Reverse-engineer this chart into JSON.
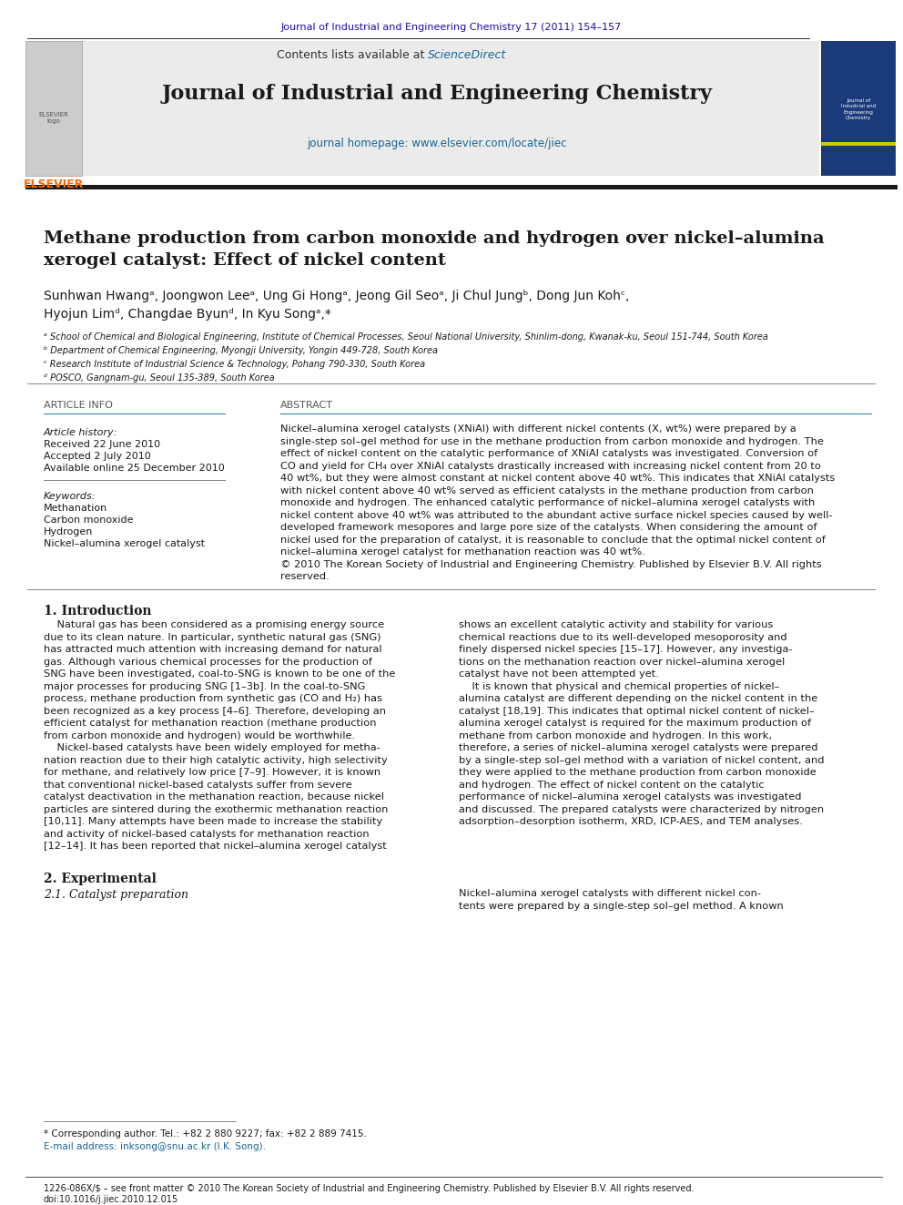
{
  "page_width": 9.92,
  "page_height": 13.23,
  "dpi": 100,
  "background_color": "#ffffff",
  "top_journal_ref": "Journal of Industrial and Engineering Chemistry 17 (2011) 154–157",
  "top_journal_ref_color": "#1a0dab",
  "header_sciencedirect_color": "#1a6496",
  "journal_name": "Journal of Industrial and Engineering Chemistry",
  "journal_homepage": "journal homepage: www.elsevier.com/locate/jiec",
  "elsevier_text": "ELSEVIER",
  "article_title": "Methane production from carbon monoxide and hydrogen over nickel–alumina\nxerogel catalyst: Effect of nickel content",
  "authors": "Sunhwan Hwangᵃ, Joongwon Leeᵃ, Ung Gi Hongᵃ, Jeong Gil Seoᵃ, Ji Chul Jungᵇ, Dong Jun Kohᶜ,\nHyojun Limᵈ, Changdae Byunᵈ, In Kyu Songᵃ,*",
  "affiliation_a": "ᵃ School of Chemical and Biological Engineering, Institute of Chemical Processes, Seoul National University, Shinlim-dong, Kwanak-ku, Seoul 151-744, South Korea",
  "affiliation_b": "ᵇ Department of Chemical Engineering, Myongji University, Yongin 449-728, South Korea",
  "affiliation_c": "ᶜ Research Institute of Industrial Science & Technology, Pohang 790-330, South Korea",
  "affiliation_d": "ᵈ POSCO, Gangnam-gu, Seoul 135-389, South Korea",
  "article_info_title": "ARTICLE INFO",
  "abstract_title": "ABSTRACT",
  "article_history_label": "Article history:",
  "received": "Received 22 June 2010",
  "accepted": "Accepted 2 July 2010",
  "available": "Available online 25 December 2010",
  "keywords_label": "Keywords:",
  "keywords": [
    "Methanation",
    "Carbon monoxide",
    "Hydrogen",
    "Nickel–alumina xerogel catalyst"
  ],
  "abstract_wrapped": "Nickel–alumina xerogel catalysts (XNiAl) with different nickel contents (X, wt%) were prepared by a\nsingle-step sol–gel method for use in the methane production from carbon monoxide and hydrogen. The\neffect of nickel content on the catalytic performance of XNiAl catalysts was investigated. Conversion of\nCO and yield for CH₄ over XNiAl catalysts drastically increased with increasing nickel content from 20 to\n40 wt%, but they were almost constant at nickel content above 40 wt%. This indicates that XNiAl catalysts\nwith nickel content above 40 wt% served as efficient catalysts in the methane production from carbon\nmonoxide and hydrogen. The enhanced catalytic performance of nickel–alumina xerogel catalysts with\nnickel content above 40 wt% was attributed to the abundant active surface nickel species caused by well-\ndeveloped framework mesopores and large pore size of the catalysts. When considering the amount of\nnickel used for the preparation of catalyst, it is reasonable to conclude that the optimal nickel content of\nnickel–alumina xerogel catalyst for methanation reaction was 40 wt%.\n© 2010 The Korean Society of Industrial and Engineering Chemistry. Published by Elsevier B.V. All rights\nreserved.",
  "section1_title": "1. Introduction",
  "col1_text": "    Natural gas has been considered as a promising energy source\ndue to its clean nature. In particular, synthetic natural gas (SNG)\nhas attracted much attention with increasing demand for natural\ngas. Although various chemical processes for the production of\nSNG have been investigated, coal-to-SNG is known to be one of the\nmajor processes for producing SNG [1–3b]. In the coal-to-SNG\nprocess, methane production from synthetic gas (CO and H₂) has\nbeen recognized as a key process [4–6]. Therefore, developing an\nefficient catalyst for methanation reaction (methane production\nfrom carbon monoxide and hydrogen) would be worthwhile.\n    Nickel-based catalysts have been widely employed for metha-\nnation reaction due to their high catalytic activity, high selectivity\nfor methane, and relatively low price [7–9]. However, it is known\nthat conventional nickel-based catalysts suffer from severe\ncatalyst deactivation in the methanation reaction, because nickel\nparticles are sintered during the exothermic methanation reaction\n[10,11]. Many attempts have been made to increase the stability\nand activity of nickel-based catalysts for methanation reaction\n[12–14]. It has been reported that nickel–alumina xerogel catalyst",
  "col2_text": "shows an excellent catalytic activity and stability for various\nchemical reactions due to its well-developed mesoporosity and\nfinely dispersed nickel species [15–17]. However, any investiga-\ntions on the methanation reaction over nickel–alumina xerogel\ncatalyst have not been attempted yet.\n    It is known that physical and chemical properties of nickel–\nalumina catalyst are different depending on the nickel content in the\ncatalyst [18,19]. This indicates that optimal nickel content of nickel–\nalumina xerogel catalyst is required for the maximum production of\nmethane from carbon monoxide and hydrogen. In this work,\ntherefore, a series of nickel–alumina xerogel catalysts were prepared\nby a single-step sol–gel method with a variation of nickel content, and\nthey were applied to the methane production from carbon monoxide\nand hydrogen. The effect of nickel content on the catalytic\nperformance of nickel–alumina xerogel catalysts was investigated\nand discussed. The prepared catalysts were characterized by nitrogen\nadsorption–desorption isotherm, XRD, ICP-AES, and TEM analyses.",
  "section2_title": "2. Experimental",
  "section2_1_title": "2.1. Catalyst preparation",
  "sec21_col2": "Nickel–alumina xerogel catalysts with different nickel con-\ntents were prepared by a single-step sol–gel method. A known",
  "footnote_star": "* Corresponding author. Tel.: +82 2 880 9227; fax: +82 2 889 7415.",
  "footnote_email": "E-mail address: inksong@snu.ac.kr (I.K. Song).",
  "footer_issn": "1226-086X/$ – see front matter © 2010 The Korean Society of Industrial and Engineering Chemistry. Published by Elsevier B.V. All rights reserved.",
  "footer_doi": "doi:10.1016/j.jiec.2010.12.015"
}
